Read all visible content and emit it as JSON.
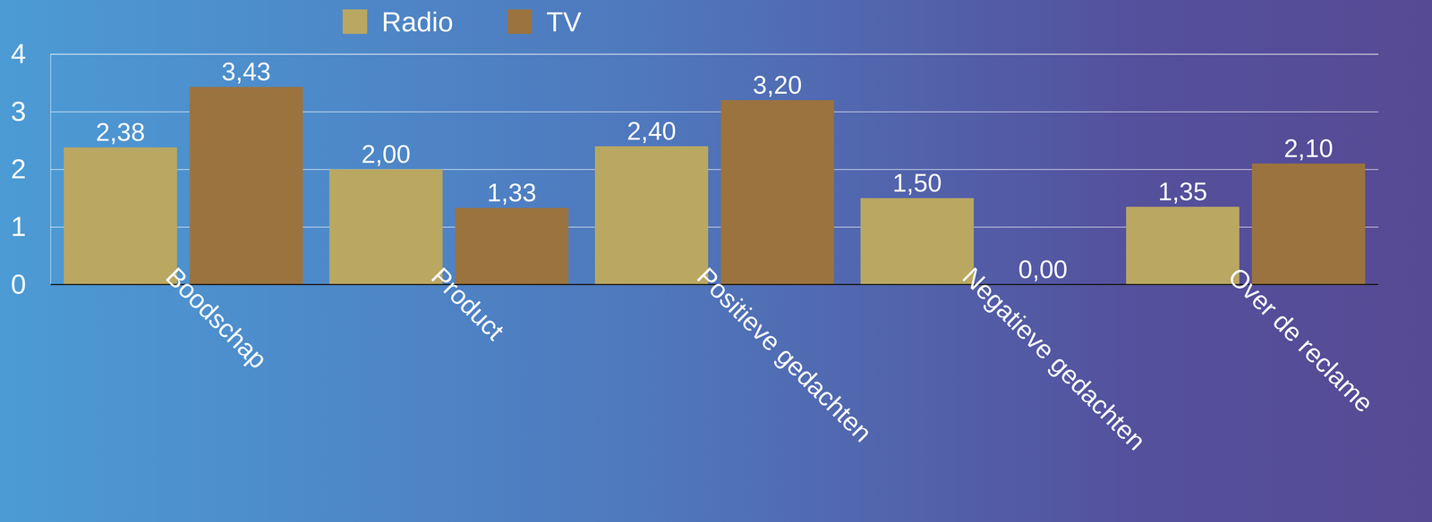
{
  "chart_data": {
    "type": "bar",
    "categories": [
      "Boodschap",
      "Product",
      "Positieve gedachten",
      "Negatieve gedachten",
      "Over de reclame"
    ],
    "series": [
      {
        "name": "Radio",
        "color": "#b9a762",
        "values": [
          2.38,
          2.0,
          2.4,
          1.5,
          1.35
        ],
        "value_labels": [
          "2,38",
          "2,00",
          "2,40",
          "1,50",
          "1,35"
        ]
      },
      {
        "name": "TV",
        "color": "#9b733f",
        "values": [
          3.43,
          1.33,
          3.2,
          0.0,
          2.1
        ],
        "value_labels": [
          "3,43",
          "1,33",
          "3,20",
          "0,00",
          "2,10"
        ]
      }
    ],
    "ylim": [
      0,
      4
    ],
    "yticks": [
      0,
      1,
      2,
      3,
      4
    ],
    "grid": true,
    "legend": "top-left",
    "data_labels": true
  }
}
